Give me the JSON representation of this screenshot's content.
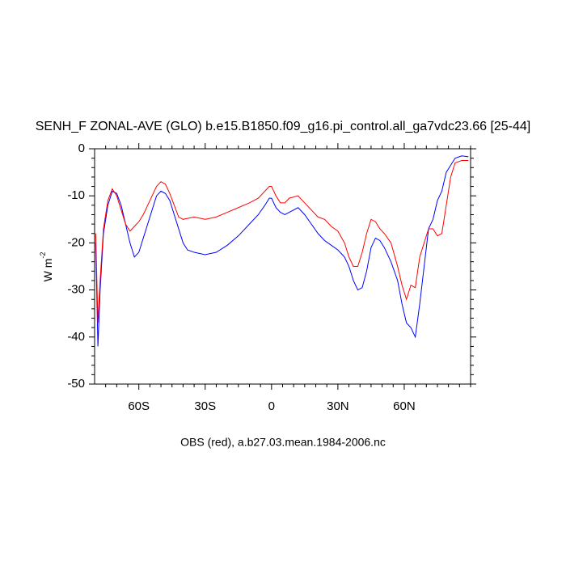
{
  "chart_data": {
    "type": "line",
    "title": "SENH_F ZONAL-AVE (GLO) b.e15.B1850.f09_g16.pi_control.all_ga7vdc23.66 [25-44]",
    "xlabel": "OBS (red), a.b27.03.mean.1984-2006.nc",
    "ylabel": "W m",
    "ylabel_sup": "-2",
    "xlim": [
      -80,
      90
    ],
    "ylim": [
      -50,
      0
    ],
    "xticks": [
      {
        "value": -60,
        "label": "60S"
      },
      {
        "value": -30,
        "label": "30S"
      },
      {
        "value": 0,
        "label": "0"
      },
      {
        "value": 30,
        "label": "30N"
      },
      {
        "value": 60,
        "label": "60N"
      }
    ],
    "yticks": [
      -50,
      -40,
      -30,
      -20,
      -10,
      0
    ],
    "xminorticks": [
      -75,
      -70,
      -65,
      -55,
      -50,
      -45,
      -40,
      -35,
      -25,
      -20,
      -15,
      -10,
      -5,
      5,
      10,
      15,
      20,
      25,
      35,
      40,
      45,
      50,
      55,
      65,
      70,
      75,
      80,
      85,
      90
    ],
    "yminorticks": [
      -48,
      -46,
      -44,
      -42,
      -38,
      -36,
      -34,
      -32,
      -28,
      -26,
      -24,
      -22,
      -18,
      -16,
      -14,
      -12,
      -8,
      -6,
      -4,
      -2
    ],
    "x": [
      -79.5,
      -78.5,
      -77.5,
      -76,
      -74,
      -72,
      -70,
      -68,
      -66,
      -64,
      -62,
      -60,
      -58,
      -56,
      -54,
      -52,
      -50,
      -48,
      -46,
      -44,
      -42,
      -40,
      -38,
      -35,
      -30,
      -25,
      -20,
      -15,
      -10,
      -6,
      -3,
      -1,
      0,
      2,
      4,
      6,
      8,
      12,
      15,
      18,
      21,
      24,
      27,
      30,
      33,
      35,
      37,
      39,
      41,
      43,
      45,
      47,
      49,
      51,
      54,
      57,
      59,
      61,
      63,
      65,
      67,
      69,
      71,
      73,
      75,
      77,
      79,
      81,
      83,
      86,
      89
    ],
    "series": [
      {
        "color": "#0000ff",
        "values": [
          -20,
          -42,
          -30,
          -18,
          -12,
          -9,
          -9.5,
          -12,
          -16,
          -20,
          -23,
          -22,
          -19,
          -16,
          -13,
          -10,
          -9,
          -9.5,
          -11,
          -14,
          -17,
          -20,
          -21.5,
          -22,
          -22.5,
          -22,
          -20.5,
          -18.5,
          -16,
          -14,
          -12,
          -10.5,
          -10.5,
          -12.5,
          -13.5,
          -14,
          -13.5,
          -12.5,
          -14,
          -16,
          -18,
          -19.5,
          -20.5,
          -21.5,
          -23,
          -25,
          -28,
          -30,
          -29.5,
          -26,
          -21,
          -19,
          -19.5,
          -21,
          -24,
          -28,
          -33,
          -37,
          -38,
          -40,
          -33,
          -25,
          -17,
          -15,
          -11,
          -9,
          -5,
          -3.5,
          -2,
          -1.5,
          -1.7
        ]
      },
      {
        "color": "#ff0000",
        "values": [
          -18,
          -37,
          -28,
          -17,
          -11,
          -8.5,
          -10,
          -13,
          -16,
          -17.5,
          -16.5,
          -15.5,
          -14,
          -12,
          -10,
          -8,
          -7,
          -7.5,
          -9.5,
          -12,
          -14.5,
          -15,
          -14.8,
          -14.5,
          -15,
          -14.5,
          -13.5,
          -12.5,
          -11.5,
          -10.5,
          -9,
          -8,
          -8,
          -10,
          -11.5,
          -11.5,
          -10.5,
          -10,
          -11.5,
          -13,
          -14.5,
          -15,
          -16.5,
          -17.5,
          -20,
          -23,
          -25,
          -25,
          -22,
          -18,
          -15,
          -15.5,
          -17,
          -18,
          -20,
          -25,
          -29,
          -32,
          -29,
          -29.5,
          -23,
          -20,
          -17,
          -17,
          -18.5,
          -18,
          -12,
          -6,
          -3,
          -2.5,
          -2.5
        ]
      }
    ]
  }
}
